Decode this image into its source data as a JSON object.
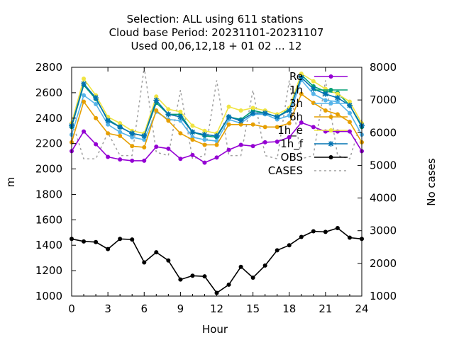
{
  "chart_data": {
    "type": "line",
    "title_lines": [
      "Selection: ALL using   611 stations",
      "Cloud base   Period: 20231101-20231107",
      "Used  00,06,12,18 + 01 02 ... 12"
    ],
    "xlabel": "Hour",
    "ylabel": "m",
    "y2label": "No cases",
    "xlim": [
      0,
      24
    ],
    "ylim": [
      1000,
      2800
    ],
    "y2lim": [
      1000,
      8000
    ],
    "xticks": [
      0,
      3,
      6,
      9,
      12,
      15,
      18,
      21,
      24
    ],
    "yticks": [
      1000,
      1200,
      1400,
      1600,
      1800,
      2000,
      2200,
      2400,
      2600,
      2800
    ],
    "y2ticks": [
      1000,
      2000,
      3000,
      4000,
      5000,
      6000,
      7000,
      8000
    ],
    "grid": false,
    "legend_position": "top-right",
    "x": [
      0,
      1,
      2,
      3,
      4,
      5,
      6,
      7,
      8,
      9,
      10,
      11,
      12,
      13,
      14,
      15,
      16,
      17,
      18,
      19,
      20,
      21,
      22,
      23,
      24
    ],
    "series": [
      {
        "name": "Re",
        "color": "#9400d3",
        "marker": "circle",
        "axis": "y",
        "values": [
          2140,
          2295,
          2195,
          2095,
          2075,
          2065,
          2065,
          2175,
          2160,
          2080,
          2110,
          2050,
          2090,
          2150,
          2190,
          2180,
          2210,
          2215,
          2250,
          2365,
          2330,
          2295,
          2295,
          2295,
          2140
        ]
      },
      {
        "name": "1h",
        "color": "#009e73",
        "marker": "circle",
        "axis": "y",
        "values": [
          2330,
          2660,
          2550,
          2390,
          2330,
          2280,
          2260,
          2520,
          2430,
          2430,
          2290,
          2260,
          2250,
          2410,
          2390,
          2460,
          2440,
          2410,
          2470,
          2740,
          2650,
          2610,
          2600,
          2500,
          2330
        ]
      },
      {
        "name": "3h",
        "color": "#56b4e9",
        "marker": "circle",
        "axis": "y",
        "values": [
          2270,
          2580,
          2510,
          2350,
          2290,
          2250,
          2230,
          2450,
          2390,
          2380,
          2250,
          2230,
          2220,
          2390,
          2360,
          2430,
          2430,
          2390,
          2420,
          2700,
          2590,
          2540,
          2530,
          2440,
          2270
        ]
      },
      {
        "name": "6h",
        "color": "#e69f00",
        "marker": "circle",
        "axis": "y",
        "values": [
          2210,
          2530,
          2400,
          2280,
          2260,
          2180,
          2170,
          2460,
          2380,
          2280,
          2230,
          2190,
          2190,
          2350,
          2350,
          2350,
          2330,
          2330,
          2360,
          2590,
          2520,
          2460,
          2430,
          2370,
          2210
        ]
      },
      {
        "name": "1h_e",
        "color": "#f0e442",
        "marker": "circle",
        "axis": "y",
        "values": [
          2360,
          2710,
          2580,
          2410,
          2360,
          2300,
          2280,
          2570,
          2470,
          2450,
          2340,
          2300,
          2280,
          2490,
          2460,
          2480,
          2460,
          2430,
          2480,
          2750,
          2690,
          2630,
          2590,
          2530,
          2360
        ]
      },
      {
        "name": "1h_f",
        "color": "#0072b2",
        "marker": "asterisk",
        "axis": "y",
        "values": [
          2340,
          2670,
          2560,
          2380,
          2330,
          2280,
          2260,
          2540,
          2430,
          2410,
          2290,
          2270,
          2260,
          2410,
          2380,
          2440,
          2440,
          2410,
          2460,
          2720,
          2630,
          2590,
          2560,
          2500,
          2340
        ]
      },
      {
        "name": "OBS",
        "color": "#000000",
        "marker": "circle",
        "axis": "y",
        "values": [
          1450,
          1430,
          1425,
          1370,
          1450,
          1445,
          1265,
          1345,
          1280,
          1130,
          1160,
          1155,
          1025,
          1090,
          1230,
          1145,
          1240,
          1360,
          1400,
          1465,
          1510,
          1505,
          1535,
          1460,
          1450
        ]
      },
      {
        "name": "CASES",
        "color": "#a0a0a0",
        "marker": "none",
        "dashed": true,
        "axis": "y2",
        "values": [
          6400,
          5200,
          5200,
          6000,
          5300,
          5300,
          8000,
          5400,
          5300,
          7300,
          5200,
          5300,
          7600,
          5300,
          5300,
          7300,
          5300,
          5200,
          7600,
          5200,
          5300,
          7600,
          5300,
          5200,
          6400
        ]
      }
    ],
    "legend_labels": [
      "Re",
      "1h",
      "3h",
      "6h",
      "1h_e",
      "1h_f",
      "OBS",
      "CASES"
    ]
  }
}
